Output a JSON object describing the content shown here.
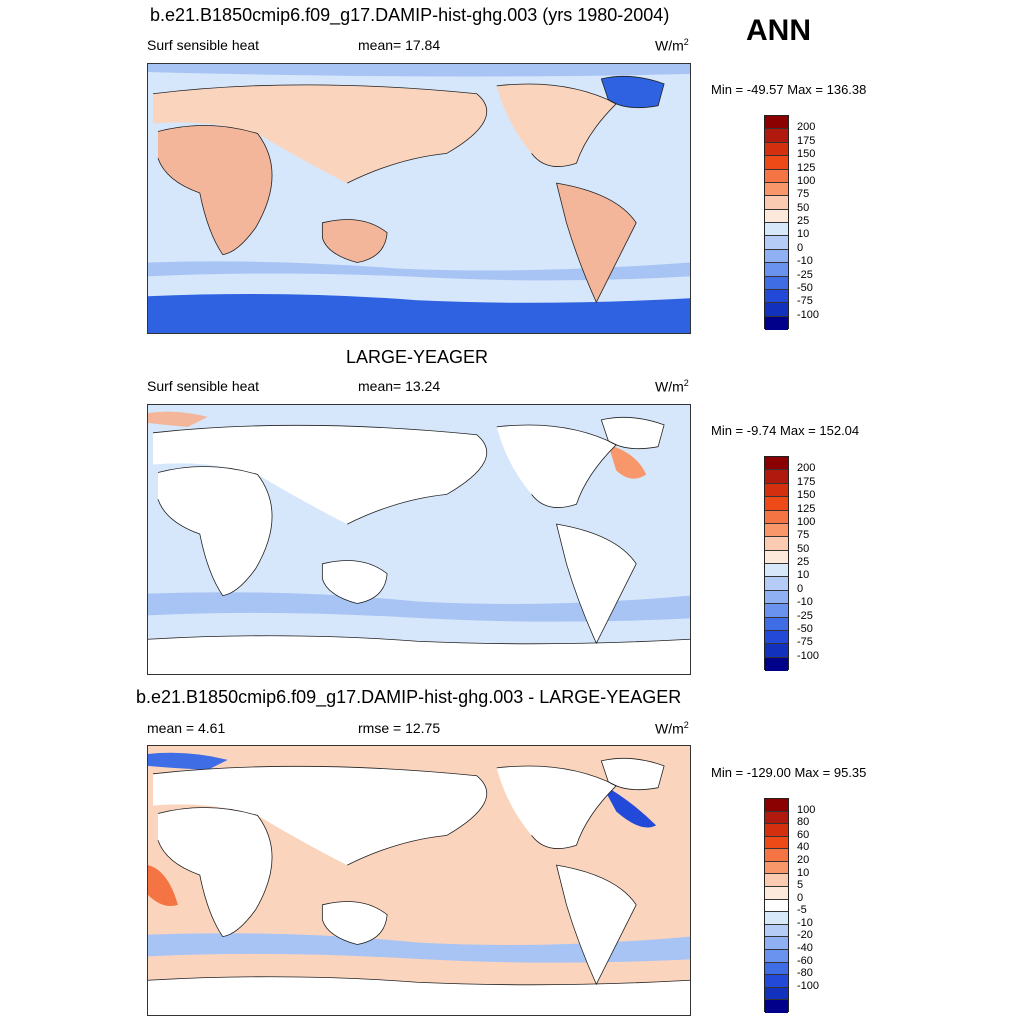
{
  "season": "ANN",
  "colors": {
    "ocean_neutral": "#d6e6fb",
    "land_warm": "#f4b69a",
    "land_light": "#fbd4bd",
    "ice_cold": "#2f62e0",
    "land_blank": "#ffffff"
  },
  "panels": [
    {
      "title": "b.e21.B1850cmip6.f09_g17.DAMIP-hist-ghg.003 (yrs 1980-2004)",
      "left_text": "Surf sensible heat",
      "mid_text": "mean=  17.84",
      "units": "W/m",
      "units_sup": "2",
      "minmax": "Min = -49.57 Max = 136.38",
      "legend_colors": [
        "#8b0000",
        "#b2190e",
        "#d4300f",
        "#ee4a17",
        "#f47444",
        "#f7976a",
        "#facbb0",
        "#fde8dc",
        "#d8e8fb",
        "#b5cdf6",
        "#8fb0f2",
        "#6a93ef",
        "#3f6de6",
        "#2249d8",
        "#1231bd",
        "#00008b"
      ],
      "legend_labels": [
        "200",
        "175",
        "150",
        "125",
        "100",
        "75",
        "50",
        "25",
        "10",
        "0",
        "-10",
        "-25",
        "-50",
        "-75",
        "-100"
      ]
    },
    {
      "title": "LARGE-YEAGER",
      "left_text": "Surf sensible heat",
      "mid_text": "mean=  13.24",
      "units": "W/m",
      "units_sup": "2",
      "minmax": "Min =  -9.74 Max = 152.04",
      "legend_colors": [
        "#8b0000",
        "#b2190e",
        "#d4300f",
        "#ee4a17",
        "#f47444",
        "#f7976a",
        "#facbb0",
        "#fde8dc",
        "#d8e8fb",
        "#b5cdf6",
        "#8fb0f2",
        "#6a93ef",
        "#3f6de6",
        "#2249d8",
        "#1231bd",
        "#00008b"
      ],
      "legend_labels": [
        "200",
        "175",
        "150",
        "125",
        "100",
        "75",
        "50",
        "25",
        "10",
        "0",
        "-10",
        "-25",
        "-50",
        "-75",
        "-100"
      ]
    },
    {
      "title": "b.e21.B1850cmip6.f09_g17.DAMIP-hist-ghg.003 - LARGE-YEAGER",
      "left_text": "mean =   4.61",
      "mid_text": "rmse =  12.75",
      "units": "W/m",
      "units_sup": "2",
      "minmax": "Min = -129.00 Max =  95.35",
      "legend_colors": [
        "#8b0000",
        "#b2190e",
        "#d4300f",
        "#ee4a17",
        "#f47444",
        "#f7976a",
        "#facbb0",
        "#fde8dc",
        "#ffffff",
        "#d8e8fb",
        "#b5cdf6",
        "#8fb0f2",
        "#6a93ef",
        "#3f6de6",
        "#2249d8",
        "#1231bd",
        "#00008b"
      ],
      "legend_labels": [
        "100",
        "80",
        "60",
        "40",
        "20",
        "10",
        "5",
        "0",
        "-5",
        "-10",
        "-20",
        "-40",
        "-60",
        "-80",
        "-100"
      ]
    }
  ]
}
